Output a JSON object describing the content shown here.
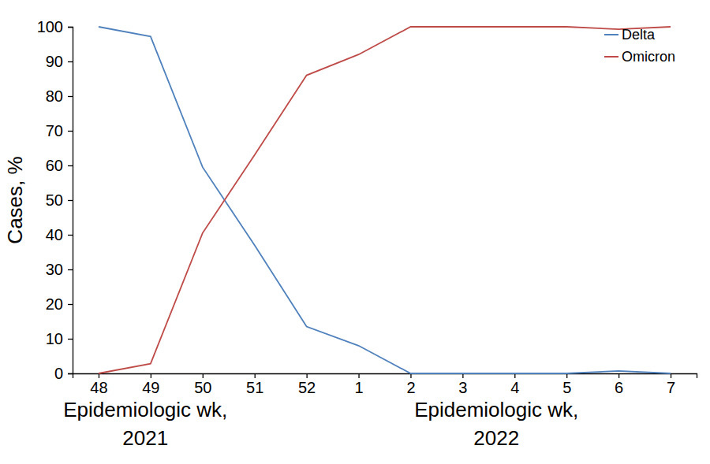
{
  "chart_data": {
    "type": "line",
    "categories": [
      "48",
      "49",
      "50",
      "51",
      "52",
      "1",
      "2",
      "3",
      "4",
      "5",
      "6",
      "7"
    ],
    "series": [
      {
        "name": "Delta",
        "color": "#4f81bd",
        "values": [
          100,
          97.2,
          59.5,
          37,
          13.5,
          8,
          0,
          0,
          0,
          0,
          0.7,
          0
        ]
      },
      {
        "name": "Omicron",
        "color": "#be4b48",
        "values": [
          0,
          2.8,
          40.5,
          63,
          86,
          92,
          100,
          100,
          100,
          100,
          99.3,
          100
        ]
      }
    ],
    "ylabel": "Cases, %",
    "xlabel": [
      [
        "Epidemiologic wk,",
        "2021"
      ],
      [
        "Epidemiologic wk,",
        "2022"
      ]
    ],
    "ylim": [
      0,
      100
    ],
    "yticks": [
      0,
      10,
      20,
      30,
      40,
      50,
      60,
      70,
      80,
      90,
      100
    ],
    "grid": false,
    "legend": "upper right"
  }
}
